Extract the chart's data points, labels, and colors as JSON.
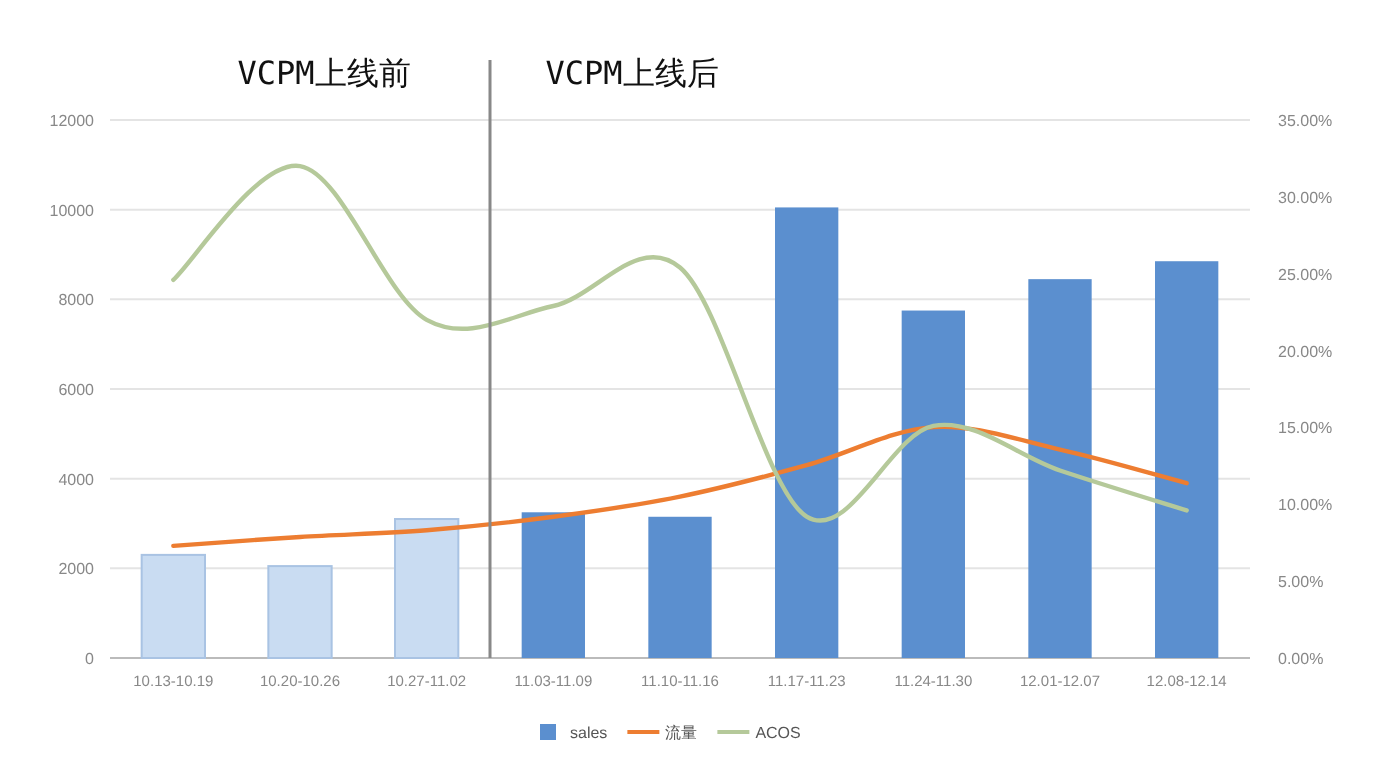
{
  "chart_data": {
    "type": "bar",
    "categories": [
      "10.13-10.19",
      "10.20-10.26",
      "10.27-11.02",
      "11.03-11.09",
      "11.10-11.16",
      "11.17-11.23",
      "11.24-11.30",
      "12.01-12.07",
      "12.08-12.14"
    ],
    "series": [
      {
        "name": "sales",
        "type": "bar",
        "color": "#5b8fcf",
        "colors": [
          "#c9dcf2",
          "#c9dcf2",
          "#c9dcf2",
          "#5b8fcf",
          "#5b8fcf",
          "#5b8fcf",
          "#5b8fcf",
          "#5b8fcf",
          "#5b8fcf"
        ],
        "values": [
          2300,
          2050,
          3100,
          3250,
          3150,
          10050,
          7750,
          8450,
          8850
        ]
      },
      {
        "name": "流量",
        "type": "line",
        "color": "#ed7d31",
        "values": [
          2500,
          2700,
          2850,
          3150,
          3600,
          4300,
          5150,
          4650,
          3900
        ]
      },
      {
        "name": "ACOS",
        "type": "line",
        "axis": "y2",
        "color": "#b5c99a",
        "values": [
          24.6,
          32.0,
          22.0,
          22.9,
          25.4,
          9.2,
          15.1,
          12.2,
          9.6
        ]
      }
    ],
    "ylim": [
      0,
      12000
    ],
    "yticks": [
      0,
      2000,
      4000,
      6000,
      8000,
      10000,
      12000
    ],
    "y2lim": [
      0,
      35
    ],
    "y2ticks": [
      {
        "value": 0,
        "label": "0.00%"
      },
      {
        "value": 5,
        "label": "5.00%"
      },
      {
        "value": 10,
        "label": "10.00%"
      },
      {
        "value": 15,
        "label": "15.00%"
      },
      {
        "value": 20,
        "label": "20.00%"
      },
      {
        "value": 25,
        "label": "25.00%"
      },
      {
        "value": 30,
        "label": "30.00%"
      },
      {
        "value": 35,
        "label": "35.00%"
      }
    ],
    "ref_lines": [
      {
        "axis": "x",
        "value": "11.03-11.09",
        "color": "#888888"
      }
    ],
    "annotations": [
      "VCPM上线前",
      "VCPM上线后"
    ],
    "grid": "y",
    "legend": "bottom"
  }
}
